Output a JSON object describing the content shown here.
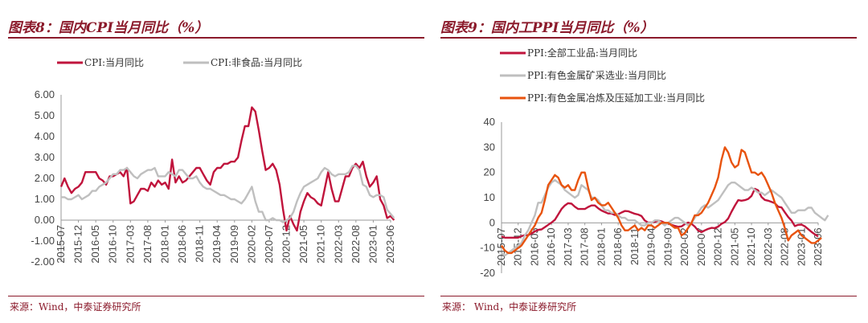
{
  "left": {
    "title": "图表8：国内CPI当月同比（%）",
    "source": "来源：Wind，中泰证券研究所"
  },
  "right": {
    "title": "图表9：国内工PPI当月同比（%）",
    "source": "来源：  Wind，中泰证券研究所"
  },
  "chart_data": [
    {
      "type": "line",
      "title": "图表8：国内CPI当月同比（%）",
      "ylim": [
        -2,
        6
      ],
      "yticks": [
        "6.00",
        "5.00",
        "4.00",
        "3.00",
        "2.00",
        "1.00",
        "0.00",
        "-1.00",
        "-2.00"
      ],
      "xticks": [
        "2015-07",
        "2015-12",
        "2016-05",
        "2016-10",
        "2017-03",
        "2017-08",
        "2018-01",
        "2018-06",
        "2018-11",
        "2019-04",
        "2019-09",
        "2020-02",
        "2020-07",
        "2020-12",
        "2021-05",
        "2021-10",
        "2022-03",
        "2022-08",
        "2023-01",
        "2023-06"
      ],
      "legend_position": "top",
      "grid": false,
      "x_start": "2015-07",
      "x_end": "2023-06",
      "series": [
        {
          "name": "CPI:当月同比",
          "color": "#c0143c",
          "values": [
            1.6,
            2.0,
            1.6,
            1.3,
            1.5,
            1.6,
            1.8,
            2.3,
            2.3,
            2.3,
            2.3,
            2.0,
            1.9,
            1.7,
            2.1,
            2.1,
            2.2,
            2.3,
            2.1,
            2.5,
            0.8,
            0.9,
            1.2,
            1.5,
            1.5,
            1.4,
            1.8,
            1.6,
            1.9,
            1.7,
            1.8,
            1.5,
            2.9,
            1.8,
            2.1,
            1.8,
            1.9,
            2.1,
            2.3,
            2.5,
            2.5,
            2.2,
            1.9,
            1.7,
            2.3,
            2.5,
            2.5,
            2.7,
            2.7,
            2.8,
            2.8,
            3.0,
            3.8,
            4.5,
            4.5,
            5.4,
            5.2,
            4.3,
            3.3,
            2.4,
            2.5,
            2.7,
            2.4,
            1.7,
            0.5,
            -0.5,
            0.2,
            -0.2,
            -0.5,
            0.4,
            0.9,
            1.3,
            1.1,
            1.0,
            0.8,
            0.7,
            1.5,
            2.3,
            1.5,
            0.9,
            0.9,
            1.5,
            2.1,
            2.1,
            2.5,
            2.7,
            2.5,
            2.8,
            2.1,
            1.6,
            1.8,
            2.1,
            1.0,
            0.7,
            0.1,
            0.2,
            0.0
          ],
          "labels_unit": "%"
        },
        {
          "name": "CPI:非食品:当月同比",
          "color": "#bfbfbf",
          "values": [
            1.1,
            1.1,
            1.0,
            1.0,
            1.1,
            1.2,
            1.0,
            1.1,
            1.2,
            1.4,
            1.4,
            1.6,
            1.7,
            1.8,
            2.0,
            2.2,
            2.2,
            2.4,
            2.4,
            2.5,
            2.3,
            2.1,
            2.0,
            2.2,
            2.3,
            2.4,
            2.4,
            2.5,
            2.1,
            2.1,
            2.1,
            2.3,
            2.2,
            2.1,
            2.4,
            2.4,
            2.2,
            2.0,
            2.0,
            2.1,
            1.8,
            1.6,
            1.5,
            1.5,
            1.4,
            1.3,
            1.2,
            1.2,
            1.1,
            1.0,
            1.0,
            0.9,
            0.8,
            1.0,
            1.3,
            1.6,
            0.9,
            0.4,
            0.4,
            0.0,
            0.0,
            0.1,
            0.0,
            0.0,
            -0.1,
            0.0,
            0.1,
            0.4,
            0.9,
            1.3,
            1.6,
            1.7,
            1.8,
            1.9,
            2.0,
            2.3,
            2.5,
            2.4,
            2.2,
            2.1,
            2.2,
            2.2,
            2.2,
            2.3,
            2.6,
            2.6,
            2.4,
            1.7,
            1.6,
            1.2,
            1.1,
            1.2,
            1.2,
            1.1,
            0.5,
            0.3,
            0.1
          ],
          "labels_unit": "%"
        }
      ]
    },
    {
      "type": "line",
      "title": "图表9：国内工PPI当月同比（%）",
      "ylim": [
        -20,
        40
      ],
      "yticks": [
        "40",
        "30",
        "20",
        "10",
        "0",
        "-10",
        "-20"
      ],
      "xticks": [
        "2015-07",
        "2015-12",
        "2016-05",
        "2016-10",
        "2017-03",
        "2017-08",
        "2018-01",
        "2018-06",
        "2018-11",
        "2019-04",
        "2019-09",
        "2020-02",
        "2020-07",
        "2020-12",
        "2021-05",
        "2021-10",
        "2022-03",
        "2022-08",
        "2023-01",
        "2023-06"
      ],
      "legend_position": "top",
      "grid": false,
      "x_start": "2015-07",
      "x_end": "2023-06",
      "series": [
        {
          "name": "PPI:全部工业品:当月同比",
          "color": "#c0143c",
          "values": [
            -5.4,
            -5.9,
            -5.9,
            -5.9,
            -5.9,
            -5.9,
            -5.3,
            -4.9,
            -4.9,
            -4.3,
            -3.4,
            -2.8,
            -2.6,
            -1.7,
            -0.8,
            0.1,
            1.2,
            3.3,
            5.5,
            6.9,
            7.8,
            7.6,
            6.4,
            5.5,
            5.5,
            5.5,
            6.3,
            6.9,
            6.9,
            5.8,
            4.9,
            4.3,
            3.7,
            3.7,
            3.1,
            3.4,
            4.1,
            4.7,
            4.6,
            4.1,
            3.6,
            3.3,
            2.7,
            0.9,
            0.1,
            0.1,
            0.4,
            0.9,
            0.6,
            0.0,
            -0.3,
            -0.8,
            -1.2,
            -1.6,
            -1.4,
            -0.5,
            0.1,
            -0.4,
            -1.5,
            -3.1,
            -3.7,
            -3.0,
            -2.4,
            -2.0,
            -2.1,
            -1.5,
            -0.4,
            0.3,
            1.7,
            4.4,
            6.8,
            9.0,
            8.8,
            9.0,
            9.5,
            10.7,
            13.5,
            12.9,
            10.3,
            9.1,
            8.8,
            8.3,
            7.8,
            6.4,
            6.1,
            4.2,
            2.3,
            0.9,
            -1.3,
            -0.8,
            -0.7,
            -1.4,
            -2.5,
            -3.6,
            -4.6,
            -5.4
          ],
          "labels_unit": "%"
        },
        {
          "name": "PPI:有色金属矿采选业:当月同比",
          "color": "#bfbfbf",
          "values": [
            -12,
            -13,
            -12,
            -11,
            -10,
            -9,
            -8,
            -5,
            -3,
            0,
            3,
            8,
            8,
            11,
            14,
            16,
            17,
            16,
            15,
            13,
            12,
            11,
            10,
            11,
            15,
            14,
            13,
            10,
            10,
            9,
            7,
            5,
            5,
            4,
            4,
            3,
            2,
            2,
            1,
            1,
            1,
            0,
            -1,
            -1,
            0,
            0,
            1,
            1,
            0,
            -1,
            0,
            1,
            2,
            2,
            1,
            0,
            -1,
            0,
            2,
            4,
            6,
            7,
            6,
            7,
            8,
            9,
            11,
            13,
            15,
            16,
            16,
            15,
            14,
            13,
            13,
            14,
            13,
            12,
            12,
            11,
            12,
            13,
            12,
            11,
            10,
            8,
            6,
            4,
            4,
            5,
            5,
            5,
            6,
            6,
            4,
            3,
            2,
            1,
            3
          ],
          "labels_unit": "%"
        },
        {
          "name": "PPI:有色金属冶炼及压延加工业:当月同比",
          "color": "#e8530e",
          "values": [
            -9,
            -11,
            -12,
            -12,
            -11,
            -10,
            -9,
            -7,
            -5,
            -3,
            -1,
            2,
            4,
            9,
            15,
            17,
            19,
            18,
            15,
            14,
            15,
            13,
            13,
            17,
            20,
            20,
            14,
            9,
            10,
            8,
            7,
            7,
            8,
            6,
            4,
            2,
            -1,
            -3,
            -3,
            -2,
            -1,
            -3,
            -2,
            -3,
            -1,
            -1,
            -2,
            -1,
            0,
            0,
            0,
            -1,
            -2,
            -2,
            -5,
            -4,
            -2,
            0,
            3,
            3,
            4,
            6,
            8,
            11,
            14,
            18,
            25,
            30,
            28,
            24,
            22,
            23,
            29,
            28,
            24,
            20,
            20,
            19,
            20,
            18,
            15,
            12,
            8,
            5,
            2,
            -2,
            -7,
            -5,
            -4,
            -3,
            -5,
            -6,
            -7,
            -8,
            -8,
            -7,
            -6
          ],
          "labels_unit": "%"
        }
      ]
    }
  ]
}
